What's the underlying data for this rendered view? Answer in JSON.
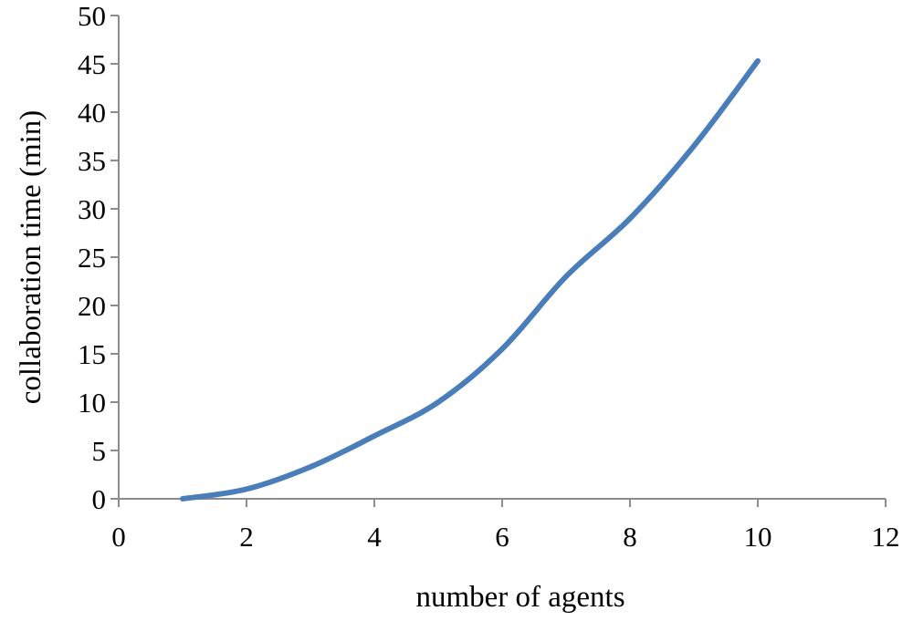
{
  "chart_data": {
    "type": "line",
    "title": "",
    "xlabel": "number of agents",
    "ylabel": "collaboration time (min)",
    "xlim": [
      0,
      12
    ],
    "ylim": [
      0,
      50
    ],
    "x_ticks": [
      0,
      2,
      4,
      6,
      8,
      10,
      12
    ],
    "y_ticks": [
      0,
      5,
      10,
      15,
      20,
      25,
      30,
      35,
      40,
      45,
      50
    ],
    "grid": false,
    "legend": "none",
    "series": [
      {
        "color": "#4a7ebb",
        "x": [
          1,
          2,
          3,
          4,
          5,
          6,
          7,
          8,
          9,
          10
        ],
        "y": [
          0,
          1.0,
          3.3,
          6.5,
          10.0,
          15.5,
          23.0,
          29.0,
          36.5,
          45.3
        ]
      }
    ]
  }
}
